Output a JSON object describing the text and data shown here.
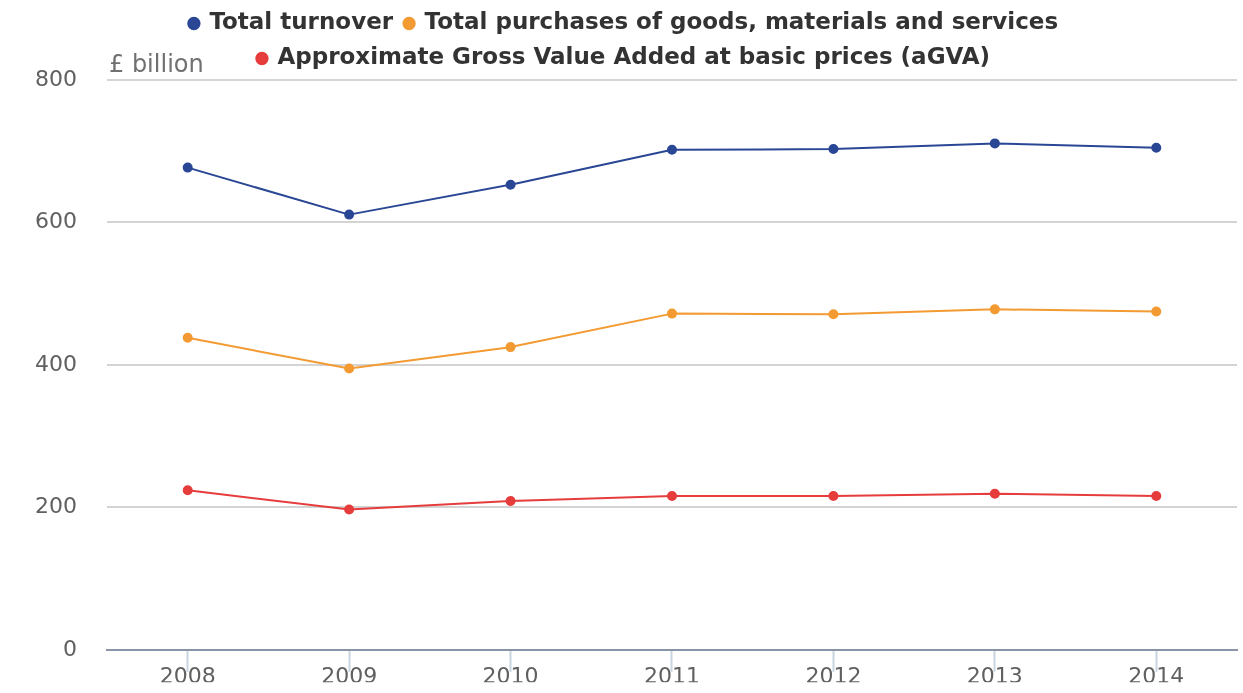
{
  "chart_data": {
    "type": "line",
    "ylabel": "£ billion",
    "categories": [
      "2008",
      "2009",
      "2010",
      "2011",
      "2012",
      "2013",
      "2014"
    ],
    "series": [
      {
        "name": "Total turnover",
        "color": "#2a4795",
        "values": [
          677,
          611,
          653,
          702,
          703,
          711,
          705
        ]
      },
      {
        "name": "Total purchases of goods, materials and services",
        "color": "#f39a32",
        "values": [
          438,
          395,
          425,
          472,
          471,
          478,
          475
        ]
      },
      {
        "name": "Approximate Gross Value Added at basic prices (aGVA)",
        "color": "#e63c3c",
        "values": [
          224,
          197,
          209,
          216,
          216,
          219,
          216
        ]
      }
    ],
    "ylim": [
      0,
      800
    ],
    "yticks": [
      0,
      200,
      400,
      600,
      800
    ],
    "grid": "y",
    "legend": "top",
    "marker": "circle",
    "line_style": "solid"
  }
}
